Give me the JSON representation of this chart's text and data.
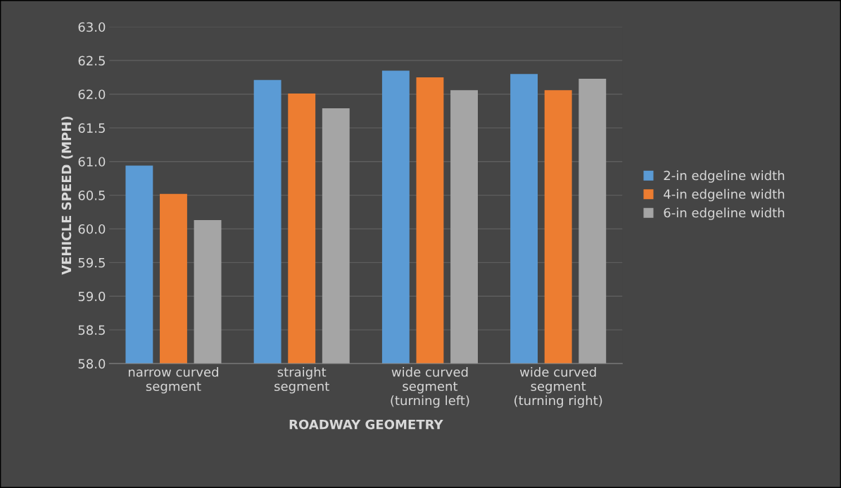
{
  "chart_data": {
    "type": "bar",
    "xlabel": "ROADWAY GEOMETRY",
    "ylabel": "VEHICLE SPEED (MPH)",
    "categories": [
      "narrow curved\nsegment",
      "straight\nsegment",
      "wide curved\nsegment\n(turning left)",
      "wide curved\nsegment\n(turning right)"
    ],
    "series": [
      {
        "name": "2-in edgeline width",
        "color": "#5b9bd5",
        "values": [
          60.94,
          62.21,
          62.35,
          62.3
        ]
      },
      {
        "name": "4-in edgeline width",
        "color": "#ed7d31",
        "values": [
          60.52,
          62.01,
          62.25,
          62.06
        ]
      },
      {
        "name": "6-in edgeline width",
        "color": "#a5a5a5",
        "values": [
          60.13,
          61.79,
          62.06,
          62.23
        ]
      }
    ],
    "ylim": [
      58.0,
      63.0
    ],
    "yticks": [
      {
        "value": 58,
        "label": "58.0"
      },
      {
        "value": 58.5,
        "label": "58.5"
      },
      {
        "value": 59,
        "label": "59.0"
      },
      {
        "value": 59.5,
        "label": "59.5"
      },
      {
        "value": 60,
        "label": "60.0"
      },
      {
        "value": 60.5,
        "label": "60.5"
      },
      {
        "value": 61,
        "label": "61.0"
      },
      {
        "value": 61.5,
        "label": "61.5"
      },
      {
        "value": 62,
        "label": "62.0"
      },
      {
        "value": 62.5,
        "label": "62.5"
      },
      {
        "value": 63,
        "label": "63.0"
      }
    ],
    "grid": "y",
    "legend": "right"
  }
}
